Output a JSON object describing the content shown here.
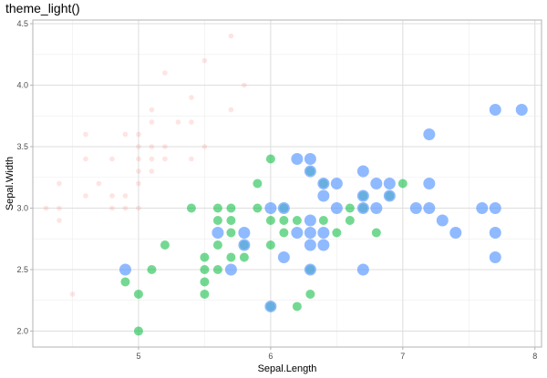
{
  "chart_data": {
    "type": "scatter",
    "title": "theme_light()",
    "xlabel": "Sepal.Length",
    "ylabel": "Sepal.Width",
    "xlim": [
      4.2,
      8.05
    ],
    "ylim": [
      1.87,
      4.53
    ],
    "x_ticks": [
      5,
      6,
      7,
      8
    ],
    "y_ticks": [
      2.0,
      2.5,
      3.0,
      3.5,
      4.0,
      4.5
    ],
    "x_tick_labels": [
      "5",
      "6",
      "7",
      "8"
    ],
    "y_tick_labels": [
      "2.0",
      "2.5",
      "3.0",
      "3.5",
      "4.0",
      "4.5"
    ],
    "grid": true,
    "legend": "none",
    "series": [
      {
        "color": "#F8766D",
        "alpha": 0.2,
        "size_level": "small",
        "points": [
          [
            4.3,
            3.0
          ],
          [
            4.4,
            2.9
          ],
          [
            4.4,
            3.0
          ],
          [
            4.4,
            3.2
          ],
          [
            4.5,
            2.3
          ],
          [
            4.6,
            3.1
          ],
          [
            4.6,
            3.4
          ],
          [
            4.6,
            3.6
          ],
          [
            4.7,
            3.2
          ],
          [
            4.8,
            3.0
          ],
          [
            4.8,
            3.1
          ],
          [
            4.8,
            3.4
          ],
          [
            4.9,
            3.0
          ],
          [
            4.9,
            3.1
          ],
          [
            4.9,
            3.6
          ],
          [
            5.0,
            3.0
          ],
          [
            5.0,
            3.2
          ],
          [
            5.0,
            3.3
          ],
          [
            5.0,
            3.4
          ],
          [
            5.0,
            3.5
          ],
          [
            5.0,
            3.6
          ],
          [
            5.1,
            3.3
          ],
          [
            5.1,
            3.4
          ],
          [
            5.1,
            3.5
          ],
          [
            5.1,
            3.7
          ],
          [
            5.1,
            3.8
          ],
          [
            5.2,
            3.4
          ],
          [
            5.2,
            3.5
          ],
          [
            5.2,
            4.1
          ],
          [
            5.3,
            3.7
          ],
          [
            5.4,
            3.4
          ],
          [
            5.4,
            3.7
          ],
          [
            5.4,
            3.9
          ],
          [
            5.5,
            3.5
          ],
          [
            5.5,
            4.2
          ],
          [
            5.7,
            3.8
          ],
          [
            5.7,
            4.4
          ],
          [
            5.8,
            4.0
          ]
        ]
      },
      {
        "color": "#00BA38",
        "alpha": 0.55,
        "size_level": "large",
        "points": [
          [
            4.9,
            2.4
          ],
          [
            5.0,
            2.0
          ],
          [
            5.0,
            2.3
          ],
          [
            5.1,
            2.5
          ],
          [
            5.2,
            2.7
          ],
          [
            5.4,
            3.0
          ],
          [
            5.5,
            2.3
          ],
          [
            5.5,
            2.4
          ],
          [
            5.5,
            2.5
          ],
          [
            5.5,
            2.6
          ],
          [
            5.6,
            2.5
          ],
          [
            5.6,
            2.7
          ],
          [
            5.6,
            2.9
          ],
          [
            5.6,
            3.0
          ],
          [
            5.7,
            2.6
          ],
          [
            5.7,
            2.8
          ],
          [
            5.7,
            2.9
          ],
          [
            5.7,
            3.0
          ],
          [
            5.8,
            2.6
          ],
          [
            5.8,
            2.7
          ],
          [
            5.9,
            3.0
          ],
          [
            5.9,
            3.2
          ],
          [
            6.0,
            2.2
          ],
          [
            6.0,
            2.7
          ],
          [
            6.0,
            2.9
          ],
          [
            6.0,
            3.4
          ],
          [
            6.1,
            2.8
          ],
          [
            6.1,
            2.9
          ],
          [
            6.1,
            3.0
          ],
          [
            6.2,
            2.2
          ],
          [
            6.2,
            2.9
          ],
          [
            6.3,
            2.3
          ],
          [
            6.3,
            2.5
          ],
          [
            6.3,
            3.3
          ],
          [
            6.4,
            2.9
          ],
          [
            6.4,
            3.2
          ],
          [
            6.5,
            2.8
          ],
          [
            6.6,
            2.9
          ],
          [
            6.6,
            3.0
          ],
          [
            6.7,
            3.0
          ],
          [
            6.7,
            3.1
          ],
          [
            6.8,
            2.8
          ],
          [
            6.9,
            3.1
          ],
          [
            7.0,
            3.2
          ]
        ]
      },
      {
        "color": "#619CFF",
        "alpha": 0.7,
        "size_level": "largest",
        "points": [
          [
            4.9,
            2.5
          ],
          [
            5.6,
            2.8
          ],
          [
            5.7,
            2.5
          ],
          [
            5.8,
            2.7
          ],
          [
            5.8,
            2.8
          ],
          [
            6.0,
            2.2
          ],
          [
            6.0,
            3.0
          ],
          [
            6.1,
            2.6
          ],
          [
            6.1,
            3.0
          ],
          [
            6.2,
            2.8
          ],
          [
            6.2,
            3.4
          ],
          [
            6.3,
            2.5
          ],
          [
            6.3,
            2.7
          ],
          [
            6.3,
            2.8
          ],
          [
            6.3,
            2.9
          ],
          [
            6.3,
            3.3
          ],
          [
            6.3,
            3.4
          ],
          [
            6.4,
            2.7
          ],
          [
            6.4,
            2.8
          ],
          [
            6.4,
            3.1
          ],
          [
            6.4,
            3.2
          ],
          [
            6.5,
            3.0
          ],
          [
            6.5,
            3.2
          ],
          [
            6.7,
            2.5
          ],
          [
            6.7,
            3.0
          ],
          [
            6.7,
            3.1
          ],
          [
            6.7,
            3.3
          ],
          [
            6.8,
            3.0
          ],
          [
            6.8,
            3.2
          ],
          [
            6.9,
            3.1
          ],
          [
            6.9,
            3.2
          ],
          [
            7.1,
            3.0
          ],
          [
            7.2,
            3.0
          ],
          [
            7.2,
            3.2
          ],
          [
            7.2,
            3.6
          ],
          [
            7.3,
            2.9
          ],
          [
            7.4,
            2.8
          ],
          [
            7.6,
            3.0
          ],
          [
            7.7,
            2.6
          ],
          [
            7.7,
            2.8
          ],
          [
            7.7,
            3.0
          ],
          [
            7.7,
            3.8
          ],
          [
            7.9,
            3.8
          ]
        ]
      }
    ]
  }
}
